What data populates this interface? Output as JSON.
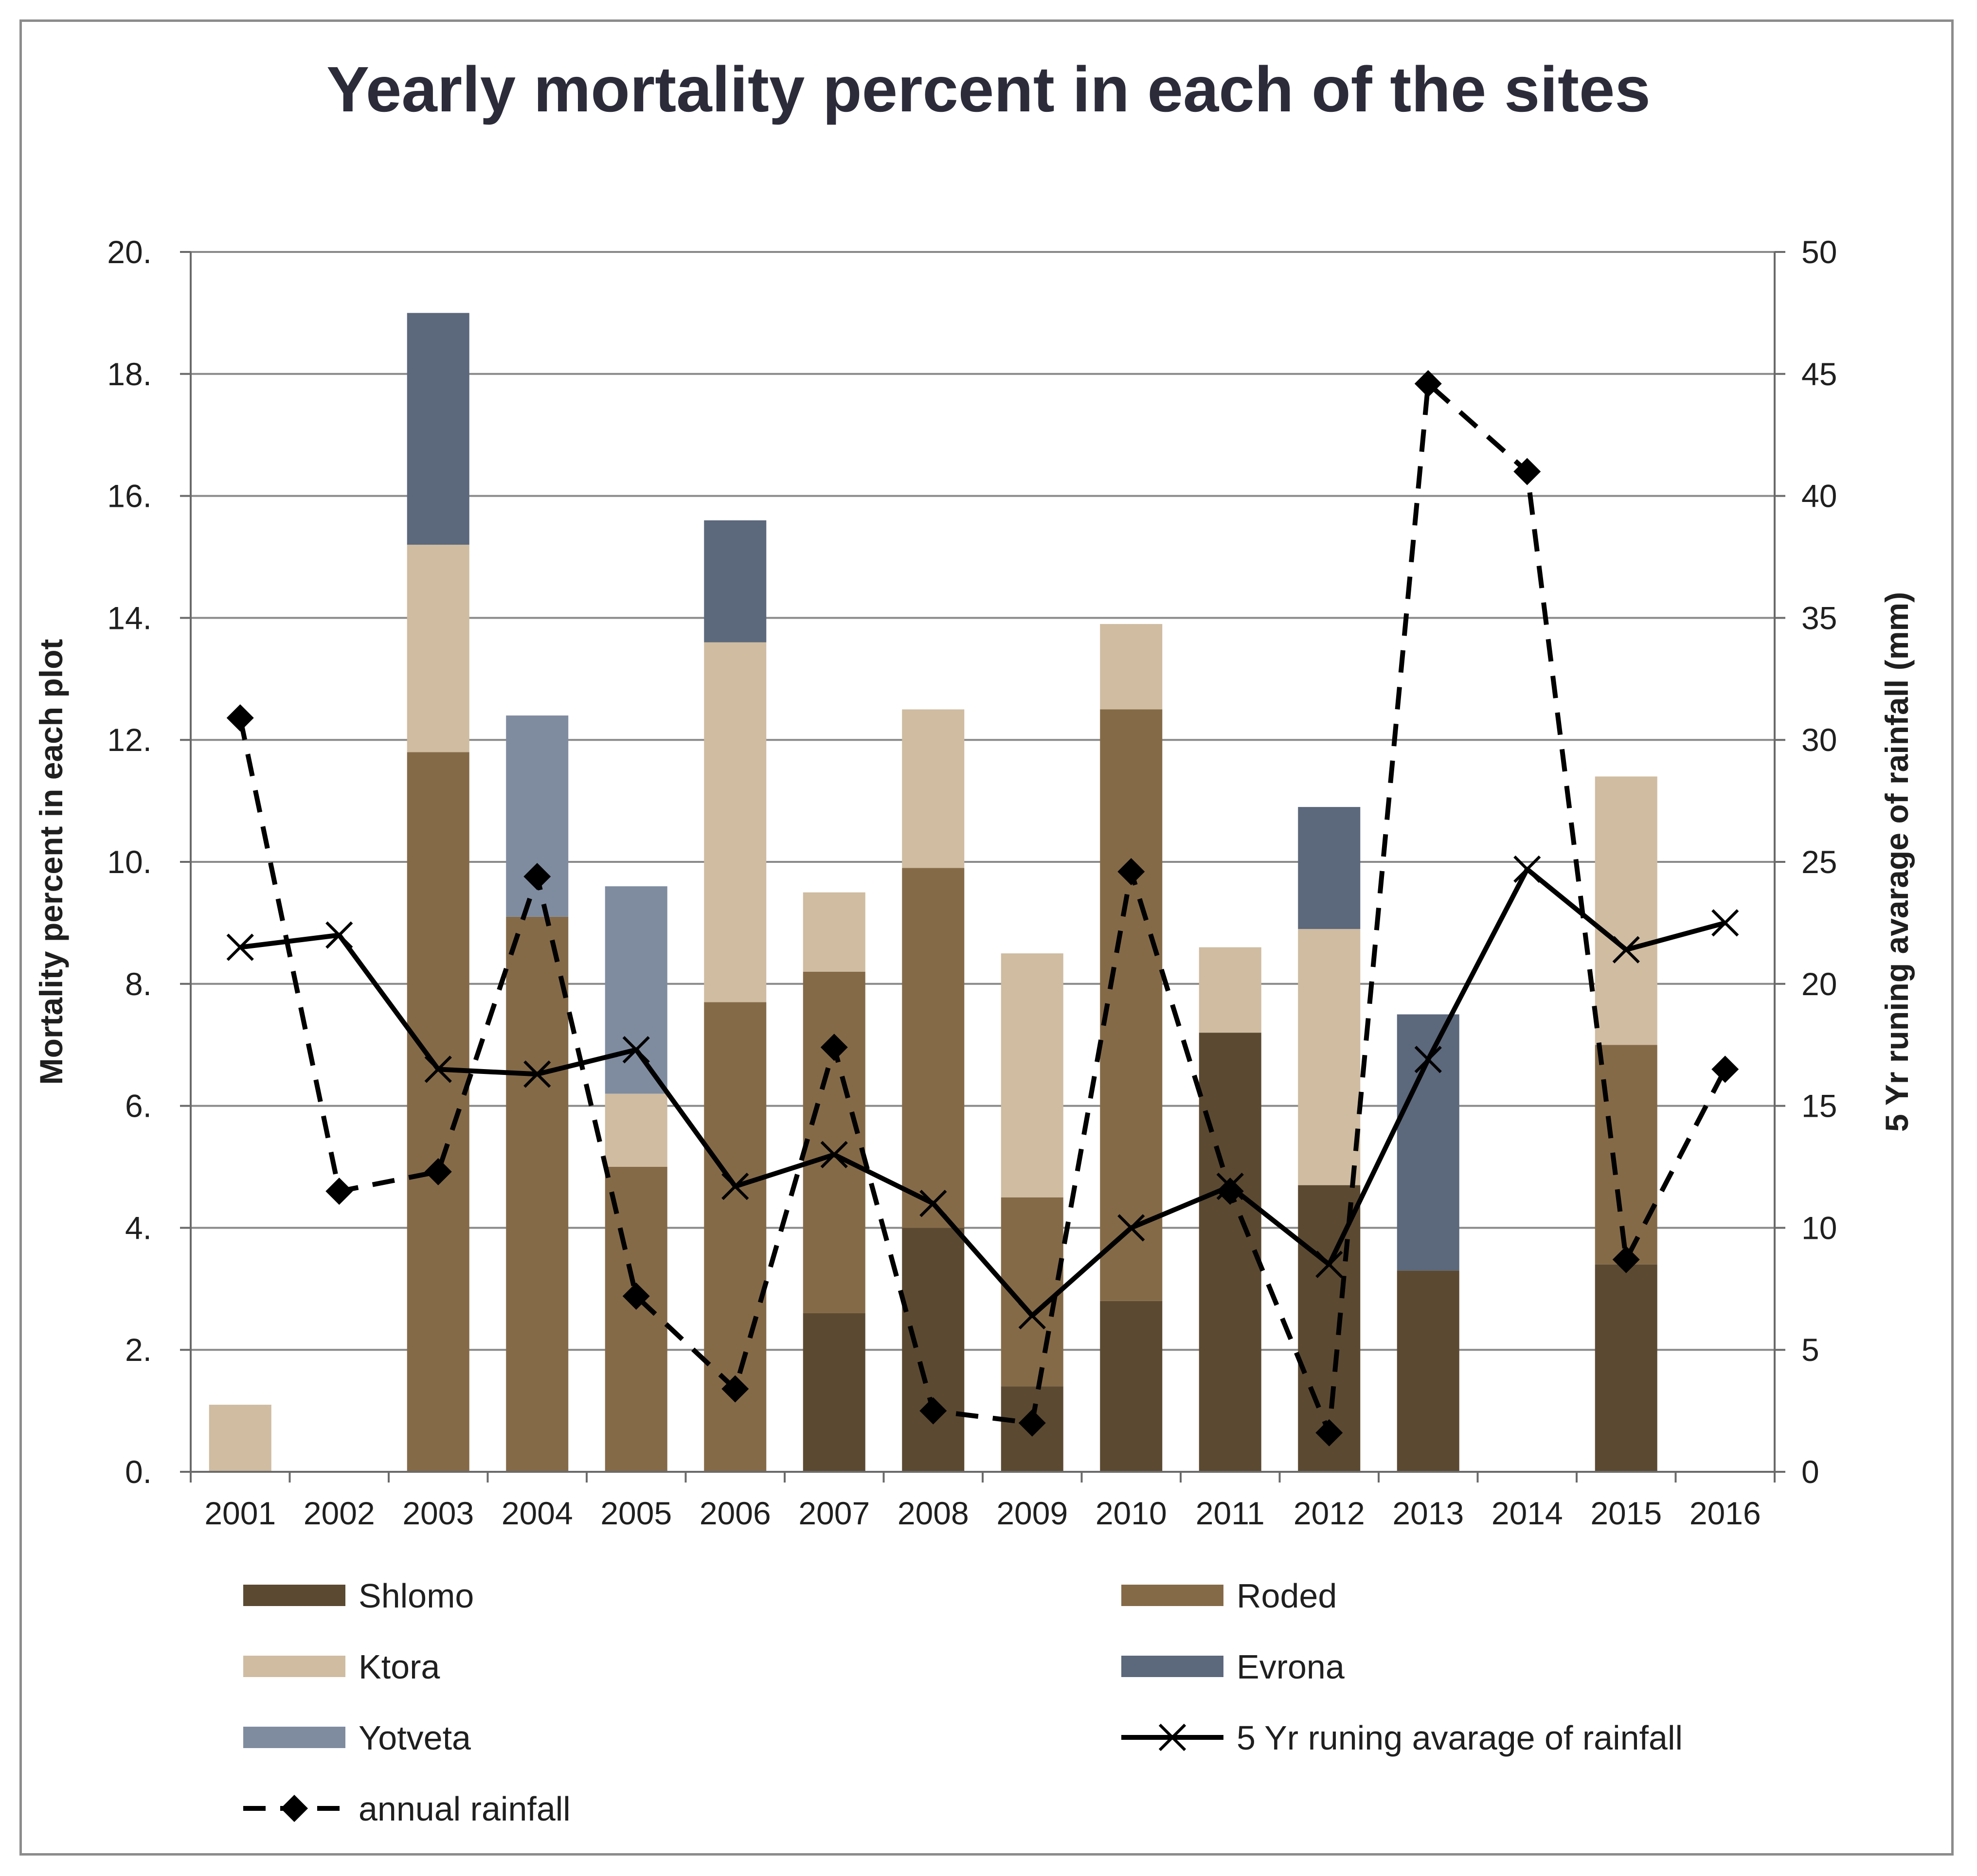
{
  "chart_data": {
    "type": "bar",
    "stacked": true,
    "title": "Yearly mortality percent in each of the sites",
    "categories": [
      "2001",
      "2002",
      "2003",
      "2004",
      "2005",
      "2006",
      "2007",
      "2008",
      "2009",
      "2010",
      "2011",
      "2012",
      "2013",
      "2014",
      "2015",
      "2016"
    ],
    "ylabel": "Mortality percent in each plot",
    "ylim": [
      0,
      20
    ],
    "yticks": [
      "0.",
      "2.",
      "4.",
      "6.",
      "8.",
      "10.",
      "12.",
      "14.",
      "16.",
      "18.",
      "20."
    ],
    "y2label": "5 Yr runing avarage of rainfall (mm)",
    "y2lim": [
      0,
      50
    ],
    "y2ticks": [
      "0",
      "5",
      "10",
      "15",
      "20",
      "25",
      "30",
      "35",
      "40",
      "45",
      "50"
    ],
    "series": [
      {
        "name": "Shlomo",
        "color": "#5b4931",
        "values": [
          0,
          0,
          0,
          0,
          0,
          0,
          2.6,
          4.0,
          1.4,
          2.8,
          7.2,
          4.7,
          3.3,
          0,
          3.4,
          0
        ]
      },
      {
        "name": "Roded",
        "color": "#856a48",
        "values": [
          0,
          0,
          11.8,
          9.1,
          5.0,
          7.7,
          5.6,
          5.9,
          3.1,
          9.7,
          0,
          0,
          0,
          0,
          3.6,
          0
        ]
      },
      {
        "name": "Ktora",
        "color": "#cfbca1",
        "values": [
          1.1,
          0,
          3.4,
          0,
          1.2,
          5.9,
          1.3,
          2.6,
          4.0,
          1.4,
          1.4,
          4.2,
          0,
          0,
          4.4,
          0
        ]
      },
      {
        "name": "Evrona",
        "color": "#5c687c",
        "values": [
          0,
          0,
          3.8,
          0,
          0,
          2.0,
          0,
          0,
          0,
          0,
          0,
          2.0,
          4.2,
          0,
          0,
          0
        ]
      },
      {
        "name": "Yotveta",
        "color": "#7f8ca0",
        "values": [
          0,
          0,
          0,
          3.3,
          3.4,
          0,
          0,
          0,
          0,
          0,
          0,
          0,
          0,
          0,
          0,
          0
        ]
      }
    ],
    "lines": [
      {
        "name": "5 Yr runing avarage of rainfall",
        "axis": "y2",
        "style": "solid",
        "marker": "x",
        "values": [
          21.5,
          22.0,
          16.5,
          16.3,
          17.3,
          11.7,
          13.0,
          11.0,
          6.4,
          10.0,
          11.7,
          8.5,
          16.9,
          24.7,
          21.4,
          22.5
        ]
      },
      {
        "name": "annual rainfall",
        "axis": "y2",
        "style": "dashed",
        "marker": "diamond",
        "values": [
          30.9,
          11.5,
          12.3,
          24.4,
          7.2,
          3.4,
          17.4,
          2.5,
          2.0,
          24.6,
          11.5,
          1.6,
          44.6,
          41.0,
          8.7,
          16.5
        ]
      }
    ],
    "legend_position": "bottom"
  }
}
